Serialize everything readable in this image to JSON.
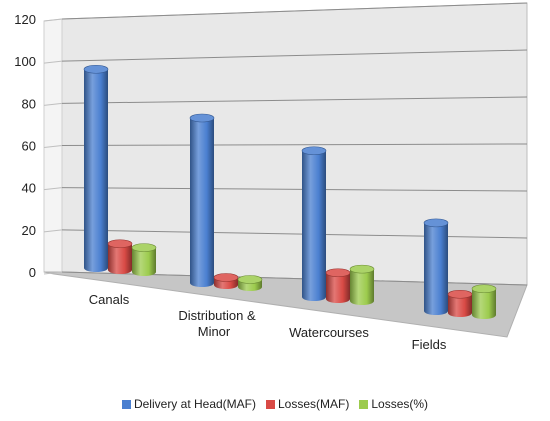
{
  "chart_data": {
    "type": "bar",
    "categories": [
      "Canals",
      "Distribution & Minor",
      "Watercourses",
      "Fields"
    ],
    "category_lines": [
      [
        "Canals"
      ],
      [
        "Distribution &",
        "Minor"
      ],
      [
        "Watercourses"
      ],
      [
        "Fields"
      ]
    ],
    "series": [
      {
        "name": "Delivery at Head(MAF)",
        "values": [
          106,
          88,
          78,
          47
        ],
        "color": "#4a7fd0"
      },
      {
        "name": "Losses(MAF)",
        "values": [
          14,
          4,
          14,
          10
        ],
        "color": "#d94a45"
      },
      {
        "name": "Losses(%)",
        "values": [
          13,
          4,
          17,
          14
        ],
        "color": "#9ccb4d"
      }
    ],
    "ylim": [
      0,
      120
    ],
    "yticks": [
      "0",
      "20",
      "40",
      "60",
      "80",
      "100",
      "120"
    ],
    "grid": true,
    "legend_position": "bottom"
  }
}
